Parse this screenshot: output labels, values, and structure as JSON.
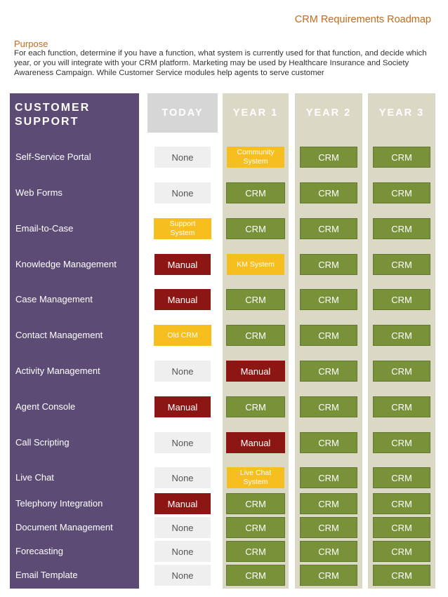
{
  "title": "CRM Requirements Roadmap",
  "purpose": {
    "heading": "Purpose",
    "text": "For each function, determine if you have a function, what system is currently used for that function, and decide which year, or you will integrate with your CRM platform. Marketing may be used by Healthcare Insurance and Society Awareness Campaign. While Customer Service modules help agents to serve customer"
  },
  "section": {
    "line1": "CUSTOMER",
    "line2": "SUPPORT"
  },
  "columns": [
    "TODAY",
    "YEAR 1",
    "YEAR 2",
    "YEAR 3"
  ],
  "colors": {
    "sidebar": "#5c4b75",
    "crm": "#79923a",
    "manual": "#8c1613",
    "system": "#f6be1f",
    "none": "#efefef",
    "accent": "#c46a1a"
  },
  "rows": [
    {
      "label": "Self-Service Portal",
      "cells": [
        {
          "text": "None",
          "type": "none"
        },
        {
          "text": "Community System",
          "type": "sys"
        },
        {
          "text": "CRM",
          "type": "crm"
        },
        {
          "text": "CRM",
          "type": "crm"
        }
      ]
    },
    {
      "label": "Web Forms",
      "cells": [
        {
          "text": "None",
          "type": "none"
        },
        {
          "text": "CRM",
          "type": "crm"
        },
        {
          "text": "CRM",
          "type": "crm"
        },
        {
          "text": "CRM",
          "type": "crm"
        }
      ]
    },
    {
      "label": "Email-to-Case",
      "cells": [
        {
          "text": "Support System",
          "type": "sys"
        },
        {
          "text": "CRM",
          "type": "crm"
        },
        {
          "text": "CRM",
          "type": "crm"
        },
        {
          "text": "CRM",
          "type": "crm"
        }
      ]
    },
    {
      "label": "Knowledge Management",
      "cells": [
        {
          "text": "Manual",
          "type": "manual"
        },
        {
          "text": "KM System",
          "type": "sys"
        },
        {
          "text": "CRM",
          "type": "crm"
        },
        {
          "text": "CRM",
          "type": "crm"
        }
      ]
    },
    {
      "label": "Case Management",
      "cells": [
        {
          "text": "Manual",
          "type": "manual"
        },
        {
          "text": "CRM",
          "type": "crm"
        },
        {
          "text": "CRM",
          "type": "crm"
        },
        {
          "text": "CRM",
          "type": "crm"
        }
      ]
    },
    {
      "label": "Contact Management",
      "cells": [
        {
          "text": "Old CRM",
          "type": "sys"
        },
        {
          "text": "CRM",
          "type": "crm"
        },
        {
          "text": "CRM",
          "type": "crm"
        },
        {
          "text": "CRM",
          "type": "crm"
        }
      ]
    },
    {
      "label": "Activity Management",
      "cells": [
        {
          "text": "None",
          "type": "none"
        },
        {
          "text": "Manual",
          "type": "manual"
        },
        {
          "text": "CRM",
          "type": "crm"
        },
        {
          "text": "CRM",
          "type": "crm"
        }
      ]
    },
    {
      "label": "Agent Console",
      "cells": [
        {
          "text": "Manual",
          "type": "manual"
        },
        {
          "text": "CRM",
          "type": "crm"
        },
        {
          "text": "CRM",
          "type": "crm"
        },
        {
          "text": "CRM",
          "type": "crm"
        }
      ]
    },
    {
      "label": "Call Scripting",
      "cells": [
        {
          "text": "None",
          "type": "none"
        },
        {
          "text": "Manual",
          "type": "manual"
        },
        {
          "text": "CRM",
          "type": "crm"
        },
        {
          "text": "CRM",
          "type": "crm"
        }
      ]
    },
    {
      "label": "Live Chat",
      "cells": [
        {
          "text": "None",
          "type": "none"
        },
        {
          "text": "Live Chat System",
          "type": "sys"
        },
        {
          "text": "CRM",
          "type": "crm"
        },
        {
          "text": "CRM",
          "type": "crm"
        }
      ]
    },
    {
      "label": "Telephony Integration",
      "cells": [
        {
          "text": "Manual",
          "type": "manual"
        },
        {
          "text": "CRM",
          "type": "crm"
        },
        {
          "text": "CRM",
          "type": "crm"
        },
        {
          "text": "CRM",
          "type": "crm"
        }
      ]
    },
    {
      "label": "Document Management",
      "cells": [
        {
          "text": "None",
          "type": "none"
        },
        {
          "text": "CRM",
          "type": "crm"
        },
        {
          "text": "CRM",
          "type": "crm"
        },
        {
          "text": "CRM",
          "type": "crm"
        }
      ]
    },
    {
      "label": "Forecasting",
      "cells": [
        {
          "text": "None",
          "type": "none"
        },
        {
          "text": "CRM",
          "type": "crm"
        },
        {
          "text": "CRM",
          "type": "crm"
        },
        {
          "text": "CRM",
          "type": "crm"
        }
      ]
    },
    {
      "label": "Email Template",
      "cells": [
        {
          "text": "None",
          "type": "none"
        },
        {
          "text": "CRM",
          "type": "crm"
        },
        {
          "text": "CRM",
          "type": "crm"
        },
        {
          "text": "CRM",
          "type": "crm"
        }
      ]
    }
  ]
}
